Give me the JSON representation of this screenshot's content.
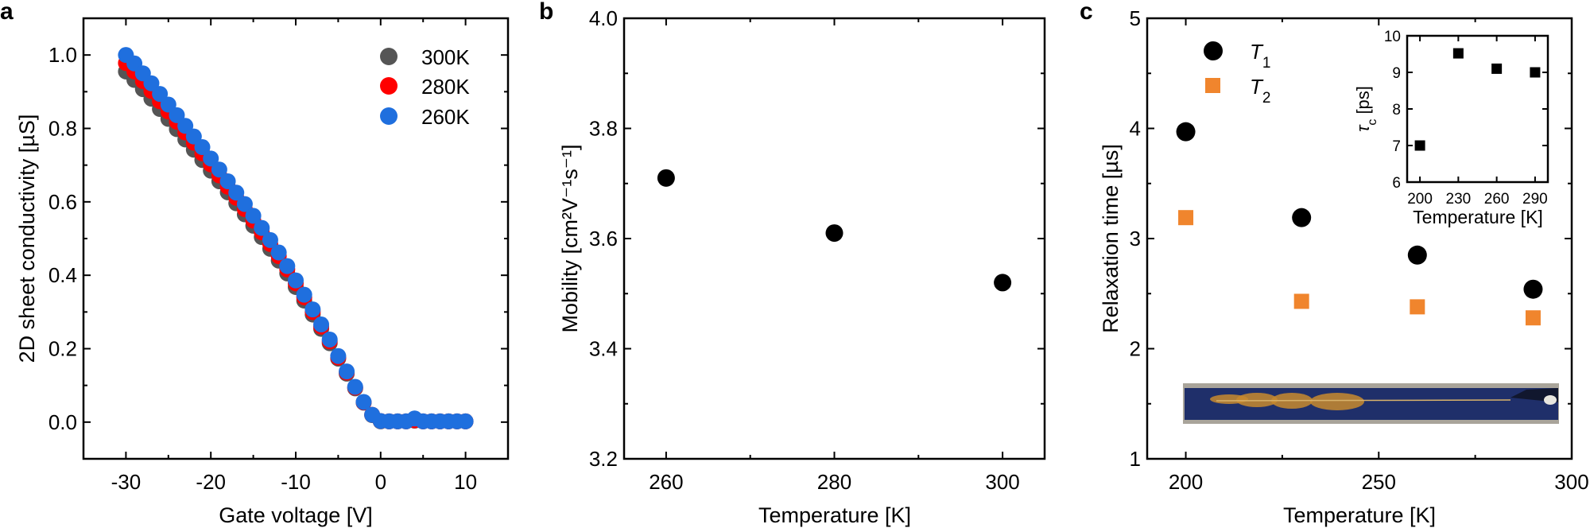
{
  "panel_labels": [
    "a",
    "b",
    "c"
  ],
  "chart_data": [
    {
      "id": "a",
      "type": "scatter",
      "xlabel": "Gate voltage [V]",
      "ylabel": "2D sheet conductivity [µS]",
      "xlim": [
        -35,
        15
      ],
      "ylim": [
        -0.1,
        1.1
      ],
      "xticks": [
        -30,
        -20,
        -10,
        0,
        10
      ],
      "xtick_labels": [
        "-30",
        "-20",
        "-10",
        "0",
        "10"
      ],
      "yticks": [
        0.0,
        0.2,
        0.4,
        0.6,
        0.8,
        1.0
      ],
      "ytick_labels": [
        "0.0",
        "0.2",
        "0.4",
        "0.6",
        "0.8",
        "1.0"
      ],
      "grid": false,
      "legend": "top-right",
      "x": [
        -30,
        -29,
        -28,
        -27,
        -26,
        -25,
        -24,
        -23,
        -22,
        -21,
        -20,
        -19,
        -18,
        -17,
        -16,
        -15,
        -14,
        -13,
        -12,
        -11,
        -10,
        -9,
        -8,
        -7,
        -6,
        -5,
        -4,
        -3,
        -2,
        -1,
        0,
        1,
        2,
        3,
        4,
        5,
        6,
        7,
        8,
        9,
        10
      ],
      "series": [
        {
          "name": "300K",
          "color": "#555555",
          "values": [
            0.955,
            0.932,
            0.907,
            0.881,
            0.853,
            0.826,
            0.798,
            0.77,
            0.742,
            0.714,
            0.685,
            0.656,
            0.626,
            0.596,
            0.566,
            0.535,
            0.504,
            0.472,
            0.44,
            0.405,
            0.368,
            0.331,
            0.293,
            0.254,
            0.215,
            0.173,
            0.132,
            0.092,
            0.053,
            0.019,
            0.002,
            0.002,
            0.002,
            0.002,
            0.004,
            0.002,
            0.002,
            0.002,
            0.002,
            0.002,
            0.002
          ]
        },
        {
          "name": "280K",
          "color": "#ff0000",
          "values": [
            0.978,
            0.955,
            0.929,
            0.902,
            0.874,
            0.846,
            0.818,
            0.789,
            0.761,
            0.732,
            0.702,
            0.672,
            0.641,
            0.611,
            0.58,
            0.549,
            0.517,
            0.485,
            0.452,
            0.416,
            0.378,
            0.34,
            0.3,
            0.26,
            0.22,
            0.176,
            0.135,
            0.094,
            0.054,
            0.02,
            0.003,
            0.002,
            0.002,
            0.002,
            0.005,
            0.002,
            0.002,
            0.002,
            0.002,
            0.002,
            0.002
          ]
        },
        {
          "name": "260K",
          "color": "#1f6fde",
          "values": [
            1.0,
            0.977,
            0.95,
            0.923,
            0.894,
            0.865,
            0.836,
            0.807,
            0.778,
            0.749,
            0.718,
            0.688,
            0.656,
            0.625,
            0.594,
            0.562,
            0.529,
            0.496,
            0.462,
            0.425,
            0.386,
            0.347,
            0.307,
            0.266,
            0.225,
            0.18,
            0.138,
            0.096,
            0.055,
            0.02,
            0.003,
            0.002,
            0.002,
            0.002,
            0.01,
            0.002,
            0.002,
            0.002,
            0.002,
            0.002,
            0.002
          ]
        }
      ]
    },
    {
      "id": "b",
      "type": "scatter",
      "xlabel": "Temperature [K]",
      "ylabel": "Mobility [cm²V⁻¹s⁻¹]",
      "xlim": [
        255,
        305
      ],
      "ylim": [
        3.2,
        4.0
      ],
      "xticks": [
        260,
        280,
        300
      ],
      "xtick_labels": [
        "260",
        "280",
        "300"
      ],
      "yticks": [
        3.2,
        3.4,
        3.6,
        3.8,
        4.0
      ],
      "ytick_labels": [
        "3.2",
        "3.4",
        "3.6",
        "3.8",
        "4.0"
      ],
      "grid": false,
      "x": [
        260,
        280,
        300
      ],
      "series": [
        {
          "color": "#000000",
          "values": [
            3.71,
            3.61,
            3.52
          ]
        }
      ]
    },
    {
      "id": "c",
      "type": "scatter",
      "xlabel": "Temperature [K]",
      "ylabel": "Relaxation time [µs]",
      "xlim": [
        190,
        300
      ],
      "ylim": [
        1,
        5
      ],
      "xticks": [
        200,
        250,
        300
      ],
      "xtick_labels": [
        "200",
        "250",
        "300"
      ],
      "yticks": [
        1,
        2,
        3,
        4,
        5
      ],
      "ytick_labels": [
        "1",
        "2",
        "3",
        "4",
        "5"
      ],
      "grid": false,
      "legend": "top-left",
      "x": [
        200,
        230,
        260,
        290
      ],
      "series": [
        {
          "name": "T1",
          "marker": "circle",
          "color": "#000000",
          "values": [
            3.97,
            3.19,
            2.85,
            2.54
          ]
        },
        {
          "name": "T2",
          "marker": "square",
          "color": "#f0852d",
          "values": [
            3.19,
            2.43,
            2.38,
            2.28
          ]
        }
      ]
    },
    {
      "id": "c-inset",
      "type": "scatter",
      "xlabel": "Temperature [K]",
      "ylabel": {
        "symbol": "τ",
        "sub": "c",
        "unit": " [ps]"
      },
      "xlim": [
        190,
        300
      ],
      "ylim": [
        6,
        10
      ],
      "xticks": [
        200,
        230,
        260,
        290
      ],
      "xtick_labels": [
        "200",
        "230",
        "260",
        "290"
      ],
      "yticks": [
        6,
        7,
        8,
        9,
        10
      ],
      "ytick_labels": [
        "6",
        "7",
        "8",
        "9",
        "10"
      ],
      "grid": false,
      "x": [
        200,
        230,
        260,
        290
      ],
      "series": [
        {
          "marker": "square",
          "color": "#000000",
          "values": [
            7.0,
            9.52,
            9.1,
            9.0
          ]
        }
      ]
    }
  ],
  "photo": {
    "name": "device-photo",
    "colors": {
      "background": "#a9a49a",
      "substrate": "#1f2f6a",
      "metal": "#c8892e"
    }
  }
}
